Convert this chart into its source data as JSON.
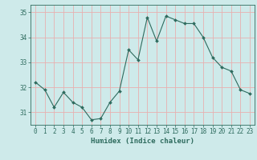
{
  "x": [
    0,
    1,
    2,
    3,
    4,
    5,
    6,
    7,
    8,
    9,
    10,
    11,
    12,
    13,
    14,
    15,
    16,
    17,
    18,
    19,
    20,
    21,
    22,
    23
  ],
  "y": [
    32.2,
    31.9,
    31.2,
    31.8,
    31.4,
    31.2,
    30.7,
    30.75,
    31.4,
    31.85,
    33.5,
    33.1,
    34.8,
    33.85,
    34.85,
    34.7,
    34.55,
    34.55,
    34.0,
    33.2,
    32.8,
    32.65,
    31.9,
    31.75
  ],
  "line_color": "#2e6b5e",
  "marker": "D",
  "marker_size": 2,
  "bg_color": "#ceeaea",
  "grid_color": "#e8b0b0",
  "axis_color": "#2e6b5e",
  "xlabel": "Humidex (Indice chaleur)",
  "ylim": [
    30.5,
    35.3
  ],
  "yticks": [
    31,
    32,
    33,
    34,
    35
  ],
  "xticks": [
    0,
    1,
    2,
    3,
    4,
    5,
    6,
    7,
    8,
    9,
    10,
    11,
    12,
    13,
    14,
    15,
    16,
    17,
    18,
    19,
    20,
    21,
    22,
    23
  ],
  "xlabel_fontsize": 6.5,
  "tick_fontsize": 5.5
}
